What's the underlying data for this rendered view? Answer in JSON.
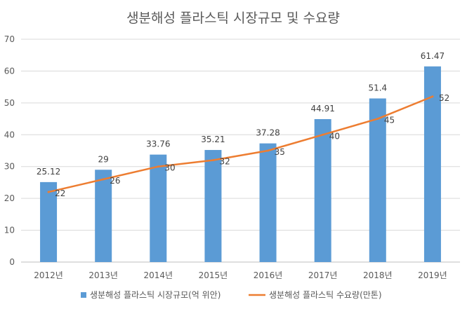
{
  "chart_data": {
    "type": "bar",
    "title": "생분해성 플라스틱 시장규모 및 수요량",
    "categories": [
      "2012년",
      "2013년",
      "2014년",
      "2015년",
      "2016년",
      "2017년",
      "2018년",
      "2019년"
    ],
    "series": [
      {
        "name": "생분해성 플라스틱 시장규모(억 위안)",
        "kind": "bar",
        "color": "#5B9BD5",
        "values": [
          25.12,
          29,
          33.76,
          35.21,
          37.28,
          44.91,
          51.4,
          61.47
        ],
        "labels": [
          "25.12",
          "29",
          "33.76",
          "35.21",
          "37.28",
          "44.91",
          "51.4",
          "61.47"
        ]
      },
      {
        "name": "생분해성 플라스틱 수요량(만톤)",
        "kind": "line",
        "color": "#ED7D31",
        "values": [
          22,
          26,
          30,
          32,
          35,
          40,
          45,
          52
        ],
        "labels": [
          "22",
          "26",
          "30",
          "32",
          "35",
          "40",
          "45",
          "52"
        ]
      }
    ],
    "ylim": [
      0,
      70
    ],
    "yticks": [
      "0",
      "10",
      "20",
      "30",
      "40",
      "50",
      "60",
      "70"
    ],
    "xlabel": "",
    "ylabel": "",
    "grid": true,
    "legend_position": "bottom"
  }
}
